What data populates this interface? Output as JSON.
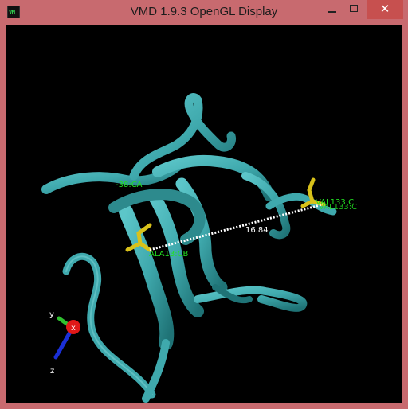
{
  "window": {
    "title": "VMD 1.9.3 OpenGL Display",
    "icon_text": "VM",
    "minimize_glyph": "",
    "maximize_glyph": "",
    "close_glyph": "✕"
  },
  "scene": {
    "atom_labels": {
      "left_ca": "-38:CA",
      "left_cb": "ALA13:CB",
      "right_top": "VAL133:C",
      "right_bottom": "VAL133:C"
    },
    "distance_label": "16.84",
    "axes": {
      "x": "x",
      "y": "y",
      "z": "z"
    }
  },
  "colors": {
    "titlebar": "#c86a6f",
    "ribbon": "#3fa9ad",
    "licorice": "#d8c11a",
    "label": "#22e022",
    "distance": "#ffffff",
    "axis_x": "#e01818",
    "axis_y": "#2fbf2f",
    "axis_z": "#1a2fd6"
  }
}
